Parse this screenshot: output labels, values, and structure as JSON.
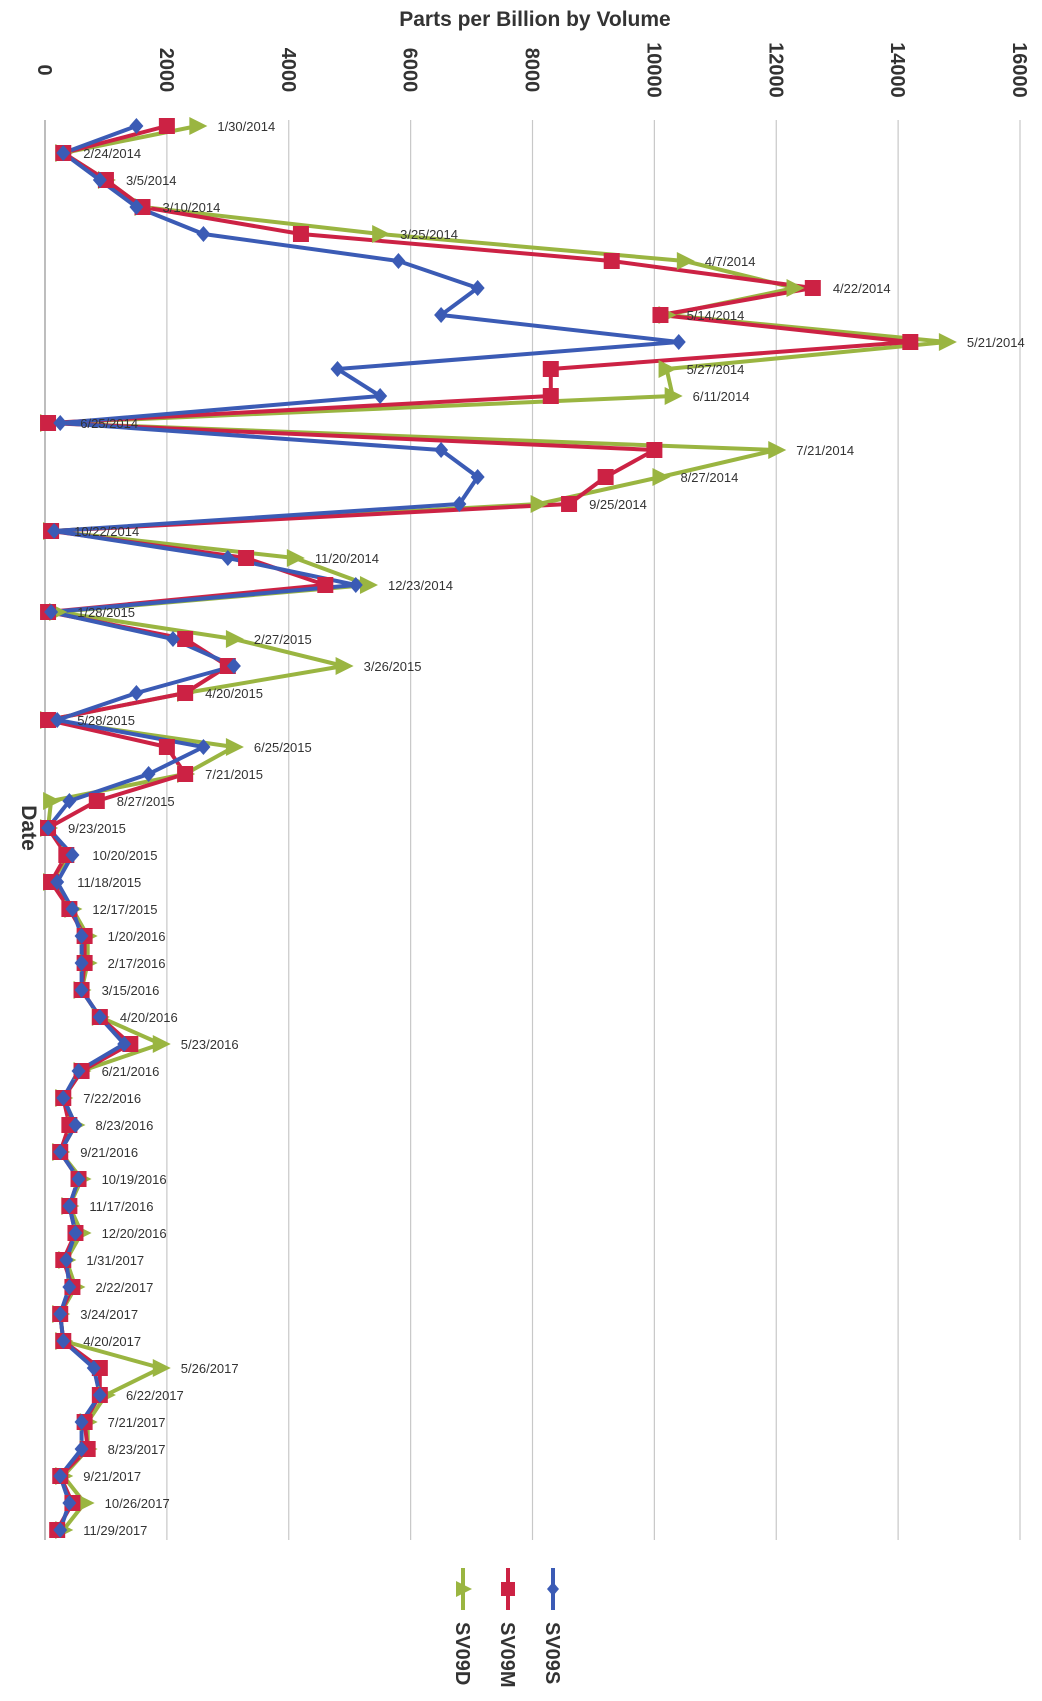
{
  "chart_data": {
    "type": "line",
    "orientation": "horizontal",
    "title": "",
    "xlabel": "Parts per Billion by Volume",
    "ylabel": "Date",
    "xlim": [
      0,
      16000
    ],
    "x_ticks": [
      0,
      2000,
      4000,
      6000,
      8000,
      10000,
      12000,
      14000,
      16000
    ],
    "grid": true,
    "legend_position": "bottom",
    "series_colors": {
      "SV09S": "#3b5bb5",
      "SV09M": "#cc2244",
      "SV09D": "#9ab541"
    },
    "categories": [
      "1/30/2014",
      "2/24/2014",
      "3/5/2014",
      "3/10/2014",
      "3/25/2014",
      "4/7/2014",
      "4/22/2014",
      "5/14/2014",
      "5/21/2014",
      "5/27/2014",
      "6/11/2014",
      "6/25/2014",
      "7/21/2014",
      "8/27/2014",
      "9/25/2014",
      "10/22/2014",
      "11/20/2014",
      "12/23/2014",
      "1/28/2015",
      "2/27/2015",
      "3/26/2015",
      "4/20/2015",
      "5/28/2015",
      "6/25/2015",
      "7/21/2015",
      "8/27/2015",
      "9/23/2015",
      "10/20/2015",
      "11/18/2015",
      "12/17/2015",
      "1/20/2016",
      "2/17/2016",
      "3/15/2016",
      "4/20/2016",
      "5/23/2016",
      "6/21/2016",
      "7/22/2016",
      "8/23/2016",
      "9/21/2016",
      "10/19/2016",
      "11/17/2016",
      "12/20/2016",
      "1/31/2017",
      "2/22/2017",
      "3/24/2017",
      "4/20/2017",
      "5/26/2017",
      "6/22/2017",
      "7/21/2017",
      "8/23/2017",
      "9/21/2017",
      "10/26/2017",
      "11/29/2017"
    ],
    "series": [
      {
        "name": "SV09S",
        "marker": "diamond",
        "values": [
          1500,
          300,
          900,
          1500,
          2600,
          5800,
          7100,
          6500,
          10400,
          4800,
          5500,
          250,
          6500,
          7100,
          6800,
          150,
          3000,
          5100,
          100,
          2100,
          3100,
          1500,
          200,
          2600,
          1700,
          400,
          50,
          450,
          200,
          450,
          600,
          600,
          600,
          900,
          1300,
          550,
          300,
          500,
          250,
          550,
          400,
          500,
          350,
          400,
          250,
          300,
          800,
          900,
          600,
          600,
          250,
          400,
          250
        ]
      },
      {
        "name": "SV09M",
        "marker": "square",
        "values": [
          2000,
          300,
          1000,
          1600,
          4200,
          9300,
          12600,
          10100,
          14200,
          8300,
          8300,
          50,
          10000,
          9200,
          8600,
          100,
          3300,
          4600,
          50,
          2300,
          3000,
          2300,
          50,
          2000,
          2300,
          850,
          50,
          350,
          100,
          400,
          650,
          650,
          600,
          900,
          1400,
          600,
          300,
          400,
          250,
          550,
          400,
          500,
          300,
          450,
          250,
          300,
          900,
          900,
          650,
          700,
          250,
          450,
          200
        ]
      },
      {
        "name": "SV09D",
        "marker": "triangle",
        "values": [
          2500,
          300,
          1000,
          1600,
          5500,
          10500,
          12300,
          10200,
          14800,
          10200,
          10300,
          50,
          12000,
          10100,
          8100,
          100,
          4100,
          5300,
          200,
          3100,
          4900,
          2300,
          50,
          3100,
          2300,
          100,
          50,
          400,
          100,
          450,
          700,
          700,
          600,
          900,
          1900,
          600,
          300,
          500,
          250,
          600,
          400,
          600,
          350,
          500,
          250,
          300,
          1900,
          1000,
          700,
          700,
          300,
          650,
          300
        ]
      }
    ]
  }
}
